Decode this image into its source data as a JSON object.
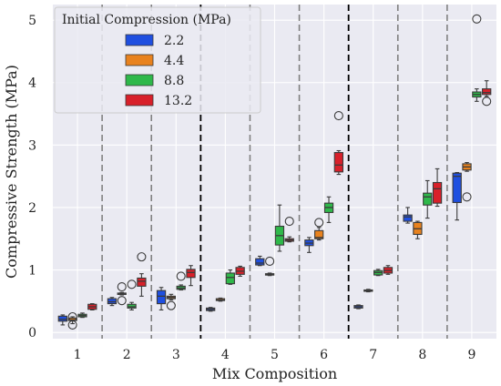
{
  "chart_data": {
    "type": "boxplot",
    "xlabel": "Mix Composition",
    "ylabel": "Compressive Strength (MPa)",
    "categories": [
      "1",
      "2",
      "3",
      "4",
      "5",
      "6",
      "7",
      "8",
      "9"
    ],
    "ylim": [
      -0.1,
      5.25
    ],
    "yticks": [
      0,
      1,
      2,
      3,
      4,
      5
    ],
    "grid": true,
    "legend": {
      "title": "Initial Compression (MPa)",
      "position": "top-left"
    },
    "dashed_separators": {
      "gray": [
        1.5,
        2.5,
        4.5,
        5.5,
        7.5,
        8.5
      ],
      "black": [
        3.5,
        6.5
      ]
    },
    "series": [
      {
        "name": "2.2",
        "color": "#1f4fe0",
        "boxes": [
          {
            "min": 0.12,
            "q1": 0.18,
            "median": 0.21,
            "q3": 0.26,
            "max": 0.28,
            "outliers": []
          },
          {
            "min": 0.43,
            "q1": 0.46,
            "median": 0.49,
            "q3": 0.54,
            "max": 0.56,
            "outliers": []
          },
          {
            "min": 0.36,
            "q1": 0.46,
            "median": 0.58,
            "q3": 0.67,
            "max": 0.72,
            "outliers": []
          },
          {
            "min": 0.34,
            "q1": 0.35,
            "median": 0.37,
            "q3": 0.39,
            "max": 0.4,
            "outliers": []
          },
          {
            "min": 1.07,
            "q1": 1.08,
            "median": 1.11,
            "q3": 1.18,
            "max": 1.22,
            "outliers": []
          },
          {
            "min": 1.28,
            "q1": 1.39,
            "median": 1.43,
            "q3": 1.48,
            "max": 1.52,
            "outliers": []
          },
          {
            "min": 0.38,
            "q1": 0.39,
            "median": 0.41,
            "q3": 0.43,
            "max": 0.44,
            "outliers": []
          },
          {
            "min": 1.75,
            "q1": 1.78,
            "median": 1.85,
            "q3": 1.88,
            "max": 2.0,
            "outliers": []
          },
          {
            "min": 1.8,
            "q1": 2.08,
            "median": 2.5,
            "q3": 2.55,
            "max": 2.56,
            "outliers": []
          }
        ]
      },
      {
        "name": "4.4",
        "color": "#e8821e",
        "boxes": [
          {
            "min": 0.14,
            "q1": 0.19,
            "median": 0.2,
            "q3": 0.23,
            "max": 0.25,
            "outliers": [
              0.12,
              0.25
            ]
          },
          {
            "min": 0.6,
            "q1": 0.61,
            "median": 0.62,
            "q3": 0.63,
            "max": 0.64,
            "outliers": [
              0.73,
              0.51
            ]
          },
          {
            "min": 0.52,
            "q1": 0.54,
            "median": 0.56,
            "q3": 0.58,
            "max": 0.61,
            "outliers": [
              0.43
            ]
          },
          {
            "min": 0.5,
            "q1": 0.51,
            "median": 0.52,
            "q3": 0.54,
            "max": 0.55,
            "outliers": []
          },
          {
            "min": 0.91,
            "q1": 0.92,
            "median": 0.93,
            "q3": 0.94,
            "max": 0.95,
            "outliers": [
              1.14
            ]
          },
          {
            "min": 1.48,
            "q1": 1.5,
            "median": 1.52,
            "q3": 1.63,
            "max": 1.68,
            "outliers": [
              1.76
            ]
          },
          {
            "min": 0.65,
            "q1": 0.66,
            "median": 0.67,
            "q3": 0.68,
            "max": 0.69,
            "outliers": []
          },
          {
            "min": 1.5,
            "q1": 1.57,
            "median": 1.66,
            "q3": 1.76,
            "max": 1.78,
            "outliers": []
          },
          {
            "min": 2.58,
            "q1": 2.6,
            "median": 2.65,
            "q3": 2.7,
            "max": 2.72,
            "outliers": [
              2.17
            ]
          }
        ]
      },
      {
        "name": "8.8",
        "color": "#2fb84a",
        "boxes": [
          {
            "min": 0.24,
            "q1": 0.25,
            "median": 0.27,
            "q3": 0.29,
            "max": 0.31,
            "outliers": []
          },
          {
            "min": 0.36,
            "q1": 0.39,
            "median": 0.41,
            "q3": 0.45,
            "max": 0.48,
            "outliers": [
              0.77
            ]
          },
          {
            "min": 0.68,
            "q1": 0.69,
            "median": 0.71,
            "q3": 0.74,
            "max": 0.76,
            "outliers": [
              0.9
            ]
          },
          {
            "min": 0.77,
            "q1": 0.78,
            "median": 0.88,
            "q3": 0.95,
            "max": 1.0,
            "outliers": []
          },
          {
            "min": 1.3,
            "q1": 1.4,
            "median": 1.55,
            "q3": 1.7,
            "max": 2.04,
            "outliers": []
          },
          {
            "min": 1.76,
            "q1": 1.92,
            "median": 2.0,
            "q3": 2.07,
            "max": 2.17,
            "outliers": []
          },
          {
            "min": 0.91,
            "q1": 0.92,
            "median": 0.96,
            "q3": 0.99,
            "max": 1.01,
            "outliers": []
          },
          {
            "min": 1.83,
            "q1": 2.04,
            "median": 2.17,
            "q3": 2.23,
            "max": 2.43,
            "outliers": []
          },
          {
            "min": 3.7,
            "q1": 3.77,
            "median": 3.81,
            "q3": 3.85,
            "max": 3.9,
            "outliers": [
              5.02
            ]
          }
        ]
      },
      {
        "name": "13.2",
        "color": "#d8202a",
        "boxes": [
          {
            "min": 0.36,
            "q1": 0.37,
            "median": 0.41,
            "q3": 0.45,
            "max": 0.46,
            "outliers": []
          },
          {
            "min": 0.58,
            "q1": 0.74,
            "median": 0.82,
            "q3": 0.87,
            "max": 0.94,
            "outliers": [
              1.21
            ]
          },
          {
            "min": 0.75,
            "q1": 0.88,
            "median": 0.96,
            "q3": 1.01,
            "max": 1.07,
            "outliers": []
          },
          {
            "min": 0.9,
            "q1": 0.93,
            "median": 0.98,
            "q3": 1.04,
            "max": 1.06,
            "outliers": []
          },
          {
            "min": 1.45,
            "q1": 1.46,
            "median": 1.48,
            "q3": 1.5,
            "max": 1.53,
            "outliers": [
              1.78
            ]
          },
          {
            "min": 2.53,
            "q1": 2.57,
            "median": 2.68,
            "q3": 2.88,
            "max": 2.91,
            "outliers": [
              3.47
            ]
          },
          {
            "min": 0.93,
            "q1": 0.95,
            "median": 0.99,
            "q3": 1.04,
            "max": 1.07,
            "outliers": []
          },
          {
            "min": 2.02,
            "q1": 2.07,
            "median": 2.3,
            "q3": 2.4,
            "max": 2.62,
            "outliers": []
          },
          {
            "min": 3.78,
            "q1": 3.81,
            "median": 3.84,
            "q3": 3.9,
            "max": 4.03,
            "outliers": [
              3.7
            ]
          }
        ]
      }
    ]
  }
}
